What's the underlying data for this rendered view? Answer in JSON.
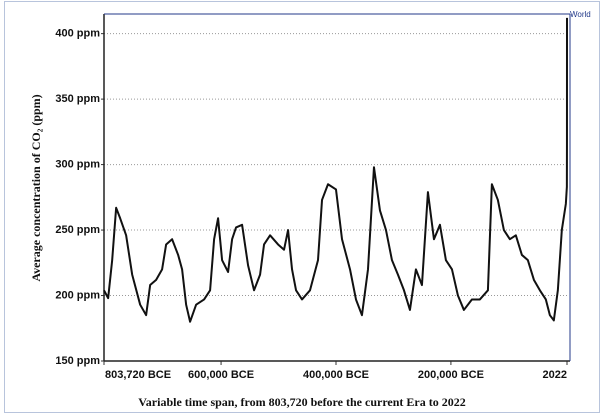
{
  "chart_data": {
    "type": "line",
    "y_label": "Average concentration of CO₂ (ppm)",
    "x_label": "Variable time span, from 803,720 before the current Era to 2022",
    "annotation": "World",
    "color": "#111111",
    "grid": true,
    "ylim": [
      150,
      415
    ],
    "yticks": [
      {
        "value": 150,
        "label": "150 ppm"
      },
      {
        "value": 200,
        "label": "200 ppm"
      },
      {
        "value": 250,
        "label": "250 ppm"
      },
      {
        "value": 300,
        "label": "300 ppm"
      },
      {
        "value": 350,
        "label": "350 ppm"
      },
      {
        "value": 400,
        "label": "400 ppm"
      }
    ],
    "xlim": [
      -803720,
      2022
    ],
    "xticks": [
      {
        "value": -803720,
        "label": "803,720 BCE"
      },
      {
        "value": -600000,
        "label": "600,000 BCE"
      },
      {
        "value": -400000,
        "label": "400,000 BCE"
      },
      {
        "value": -200000,
        "label": "200,000 BCE"
      },
      2022
    ],
    "x": [
      -803720,
      -796500,
      -789500,
      -782600,
      -775600,
      -765200,
      -754700,
      -740800,
      -730400,
      -723400,
      -713000,
      -702600,
      -695600,
      -685200,
      -674700,
      -667800,
      -660800,
      -653900,
      -643400,
      -629500,
      -619100,
      -612100,
      -605200,
      -598200,
      -587800,
      -580800,
      -573900,
      -563400,
      -553000,
      -542600,
      -532100,
      -525200,
      -514700,
      -500800,
      -490400,
      -483400,
      -476500,
      -469500,
      -459100,
      -445200,
      -431300,
      -424300,
      -413900,
      -400000,
      -389500,
      -375600,
      -365200,
      -354800,
      -344300,
      -333900,
      -323500,
      -313000,
      -302600,
      -292200,
      -281700,
      -271300,
      -260900,
      -250400,
      -240000,
      -229500,
      -219100,
      -208700,
      -198200,
      -187800,
      -177400,
      -163500,
      -149600,
      -135600,
      -128700,
      -118300,
      -107800,
      -97400,
      -87000,
      -76500,
      -66100,
      -55600,
      -45200,
      -34800,
      -27800,
      -20900,
      -13900,
      -7000,
      0,
      1800,
      1960,
      2022
    ],
    "values": [
      204,
      198,
      227,
      267,
      259,
      246,
      216,
      193,
      185,
      208,
      212,
      220,
      239,
      243,
      231,
      220,
      193,
      180,
      193,
      197,
      204,
      243,
      259,
      227,
      218,
      243,
      252,
      254,
      223,
      204,
      216,
      239,
      246,
      239,
      235,
      250,
      220,
      204,
      197,
      204,
      227,
      273,
      285,
      281,
      243,
      220,
      197,
      185,
      220,
      298,
      265,
      250,
      227,
      216,
      204,
      189,
      220,
      208,
      279,
      243,
      254,
      227,
      220,
      200,
      189,
      197,
      197,
      204,
      285,
      273,
      250,
      243,
      246,
      231,
      227,
      212,
      204,
      197,
      185,
      181,
      204,
      250,
      270,
      283,
      317,
      412
    ]
  }
}
